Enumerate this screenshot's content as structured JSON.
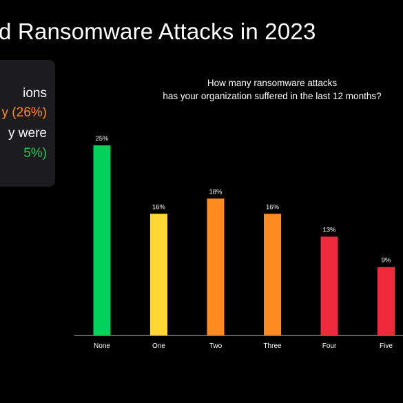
{
  "slide": {
    "title": "d Ransomware Attacks in 2023"
  },
  "info_box": {
    "line1": "ions",
    "line2": "y (26%)",
    "line3": "y were",
    "line4": "5%)"
  },
  "colors": {
    "background": "#000000",
    "green": "#00d25b",
    "yellow": "#ffd834",
    "orange": "#ff8a1f",
    "red": "#ee2a3c",
    "box": "#1c1c1e",
    "info_orange": "#ff8c1a",
    "info_green": "#22c55e"
  },
  "chart_data": {
    "type": "bar",
    "title_lines": [
      "How many ransomware attacks",
      "has your organization suffered  in the last 12 months?"
    ],
    "categories": [
      "None",
      "One",
      "Two",
      "Three",
      "Four",
      "Five"
    ],
    "values": [
      25,
      16,
      18,
      16,
      13,
      9
    ],
    "data_labels": [
      "25%",
      "16%",
      "18%",
      "16%",
      "13%",
      "9%"
    ],
    "bar_colors": [
      "#00d25b",
      "#ffd834",
      "#ff8a1f",
      "#ff8a1f",
      "#ee2a3c",
      "#ee2a3c"
    ],
    "ylim": [
      0,
      25
    ],
    "grid": false,
    "xlabel": "",
    "ylabel": ""
  }
}
